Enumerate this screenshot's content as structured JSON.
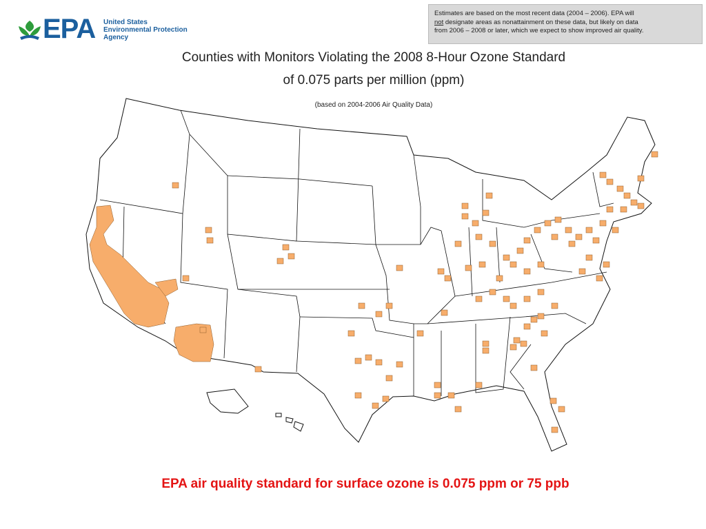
{
  "logo": {
    "mark": "EPA",
    "lines": [
      "United States",
      "Environmental Protection",
      "Agency"
    ]
  },
  "note": {
    "line1": "Estimates are based on the most recent data (2004 – 2006). EPA will",
    "line2_underlined": "not",
    "line2_rest": " designate areas as nonattainment on these data, but likely on data",
    "line3": "from 2006 – 2008 or later, which we expect to show improved air quality."
  },
  "title": {
    "line1": "Counties with Monitors Violating the 2008 8-Hour Ozone Standard",
    "line2": "of 0.075 parts per million (ppm)"
  },
  "subtitle": "(based on 2004-2006 Air Quality Data)",
  "footer": "EPA air quality standard for surface ozone is 0.075 ppm or 75 ppb"
}
